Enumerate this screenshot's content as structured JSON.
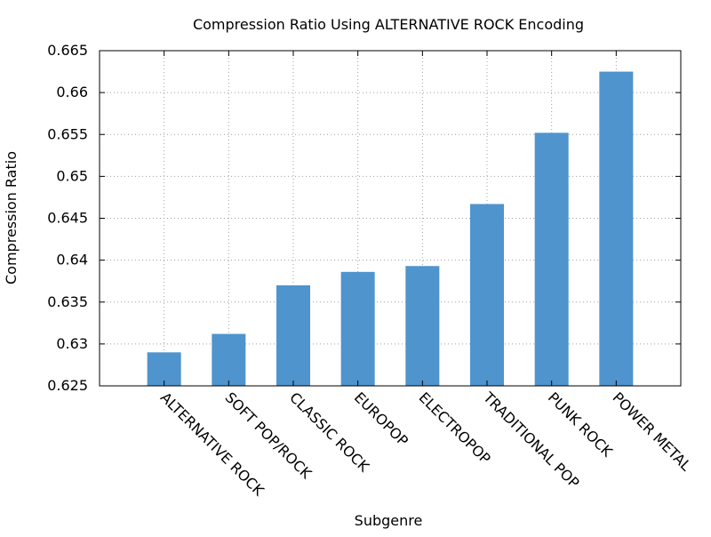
{
  "chart_data": {
    "type": "bar",
    "title": "Compression Ratio Using ALTERNATIVE ROCK Encoding",
    "xlabel": "Subgenre",
    "ylabel": "Compression Ratio",
    "categories": [
      "ALTERNATIVE ROCK",
      "SOFT POP/ROCK",
      "CLASSIC ROCK",
      "EUROPOP",
      "ELECTROPOP",
      "TRADITIONAL POP",
      "PUNK ROCK",
      "POWER METAL"
    ],
    "values": [
      0.629,
      0.6312,
      0.637,
      0.6386,
      0.6393,
      0.6467,
      0.6552,
      0.6625
    ],
    "ylim": [
      0.625,
      0.665
    ],
    "yticks": [
      "0.625",
      "0.63",
      "0.635",
      "0.64",
      "0.645",
      "0.65",
      "0.655",
      "0.66",
      "0.665"
    ],
    "grid": true,
    "bar_color": "#4f94cd"
  }
}
